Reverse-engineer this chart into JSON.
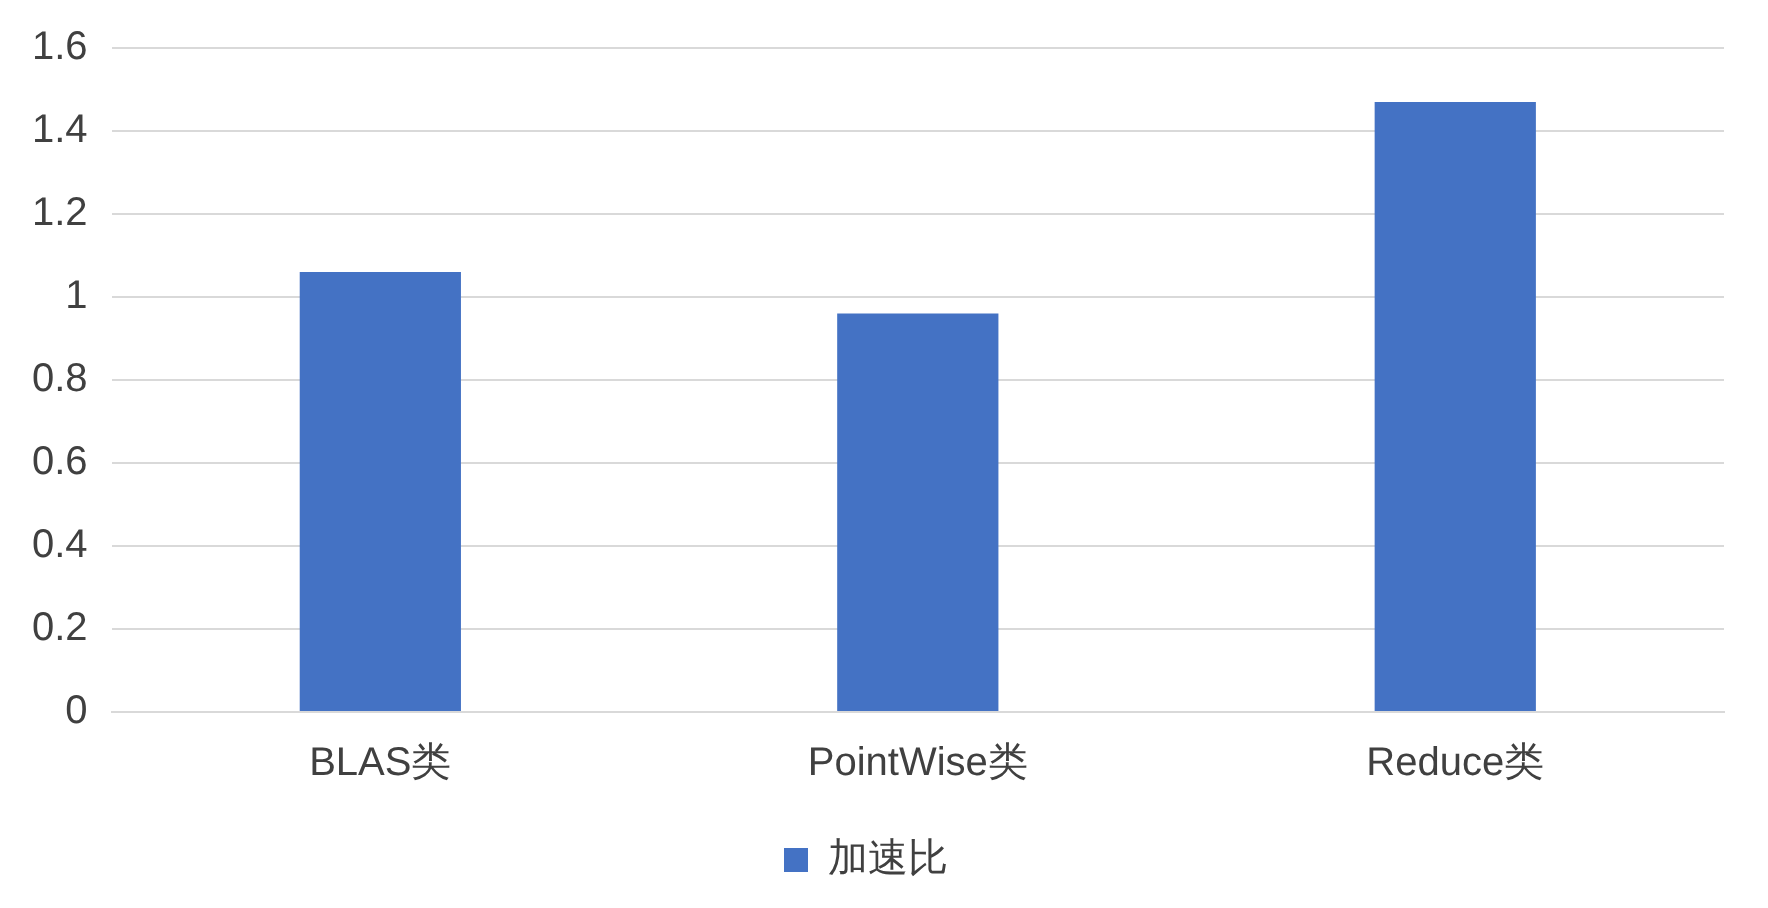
{
  "chart_data": {
    "type": "bar",
    "categories": [
      "BLAS类",
      "PointWise类",
      "Reduce类"
    ],
    "series": [
      {
        "name": "加速比",
        "color": "#4472c4",
        "values": [
          1.06,
          0.96,
          1.47
        ]
      }
    ],
    "ylim": [
      0,
      1.6
    ],
    "yticks": [
      0,
      0.2,
      0.4,
      0.6,
      0.8,
      1,
      1.2,
      1.4,
      1.6
    ],
    "grid": "y",
    "legend": "bottom"
  }
}
